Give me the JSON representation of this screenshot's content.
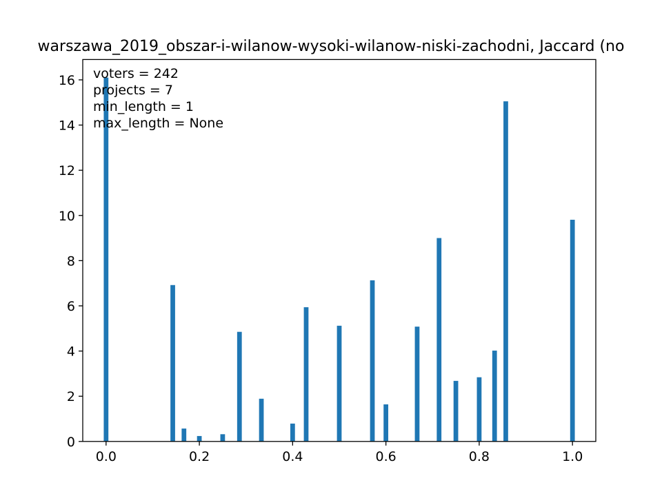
{
  "chart_data": {
    "type": "bar",
    "title": "warszawa_2019_obszar-i-wilanow-wysoki-wilanow-niski-zachodni, Jaccard (no",
    "xlabel": "",
    "ylabel": "",
    "xlim": [
      -0.05,
      1.05
    ],
    "ylim": [
      0,
      16.9
    ],
    "bar_width": 0.01,
    "grid": false,
    "bar_color": "#1f77b4",
    "x_ticks": [
      0.0,
      0.2,
      0.4,
      0.6,
      0.8,
      1.0
    ],
    "x_tick_labels": [
      "0.0",
      "0.2",
      "0.4",
      "0.6",
      "0.8",
      "1.0"
    ],
    "y_ticks": [
      0,
      2,
      4,
      6,
      8,
      10,
      12,
      14,
      16
    ],
    "y_tick_labels": [
      "0",
      "2",
      "4",
      "6",
      "8",
      "10",
      "12",
      "14",
      "16"
    ],
    "x": [
      0.0,
      0.143,
      0.167,
      0.2,
      0.25,
      0.286,
      0.333,
      0.4,
      0.429,
      0.5,
      0.571,
      0.6,
      0.667,
      0.714,
      0.75,
      0.8,
      0.833,
      0.857,
      1.0
    ],
    "values": [
      16.1,
      6.92,
      0.57,
      0.24,
      0.32,
      4.85,
      1.89,
      0.79,
      5.94,
      5.12,
      7.13,
      1.64,
      5.08,
      9.0,
      2.68,
      2.84,
      4.02,
      15.05,
      9.81
    ],
    "annotations": [
      "voters = 242",
      "projects = 7",
      "min_length = 1",
      "max_length = None"
    ]
  }
}
